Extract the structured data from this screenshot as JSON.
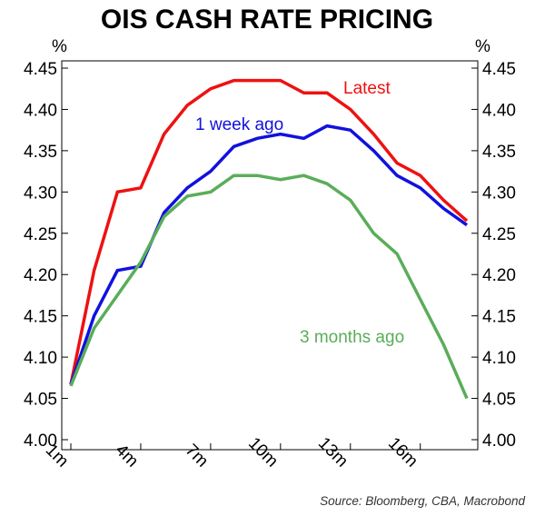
{
  "chart_data": {
    "type": "line",
    "title": "OIS CASH RATE PRICING",
    "y_unit_left": "%",
    "y_unit_right": "%",
    "ylim": [
      4.0,
      4.45
    ],
    "y_ticks": [
      "4.00",
      "4.05",
      "4.10",
      "4.15",
      "4.20",
      "4.25",
      "4.30",
      "4.35",
      "4.40",
      "4.45"
    ],
    "x_tick_labels": [
      "1m",
      "4m",
      "7m",
      "10m",
      "13m",
      "16m"
    ],
    "x_ticks": [
      1,
      4,
      7,
      10,
      13,
      16
    ],
    "xlim": [
      1,
      18
    ],
    "x": [
      1,
      2,
      3,
      4,
      5,
      6,
      7,
      8,
      9,
      10,
      11,
      12,
      13,
      14,
      15,
      16,
      17,
      18
    ],
    "series": [
      {
        "name": "Latest",
        "color": "#ee1111",
        "values": [
          4.067,
          4.205,
          4.3,
          4.305,
          4.37,
          4.405,
          4.425,
          4.435,
          4.435,
          4.435,
          4.42,
          4.42,
          4.4,
          4.37,
          4.335,
          4.32,
          4.29,
          4.265
        ]
      },
      {
        "name": "1 week ago",
        "color": "#1111dd",
        "values": [
          4.067,
          4.15,
          4.205,
          4.21,
          4.275,
          4.305,
          4.325,
          4.355,
          4.365,
          4.37,
          4.365,
          4.38,
          4.375,
          4.35,
          4.32,
          4.305,
          4.28,
          4.26
        ]
      },
      {
        "name": "3 months ago",
        "color": "#5aad5a",
        "values": [
          4.065,
          4.135,
          4.175,
          4.215,
          4.27,
          4.295,
          4.3,
          4.32,
          4.32,
          4.315,
          4.32,
          4.31,
          4.29,
          4.25,
          4.225,
          4.17,
          4.115,
          4.05
        ]
      }
    ],
    "grid": false,
    "legend": "inline labels"
  },
  "source_note": "Source: Bloomberg, CBA, Macrobond"
}
